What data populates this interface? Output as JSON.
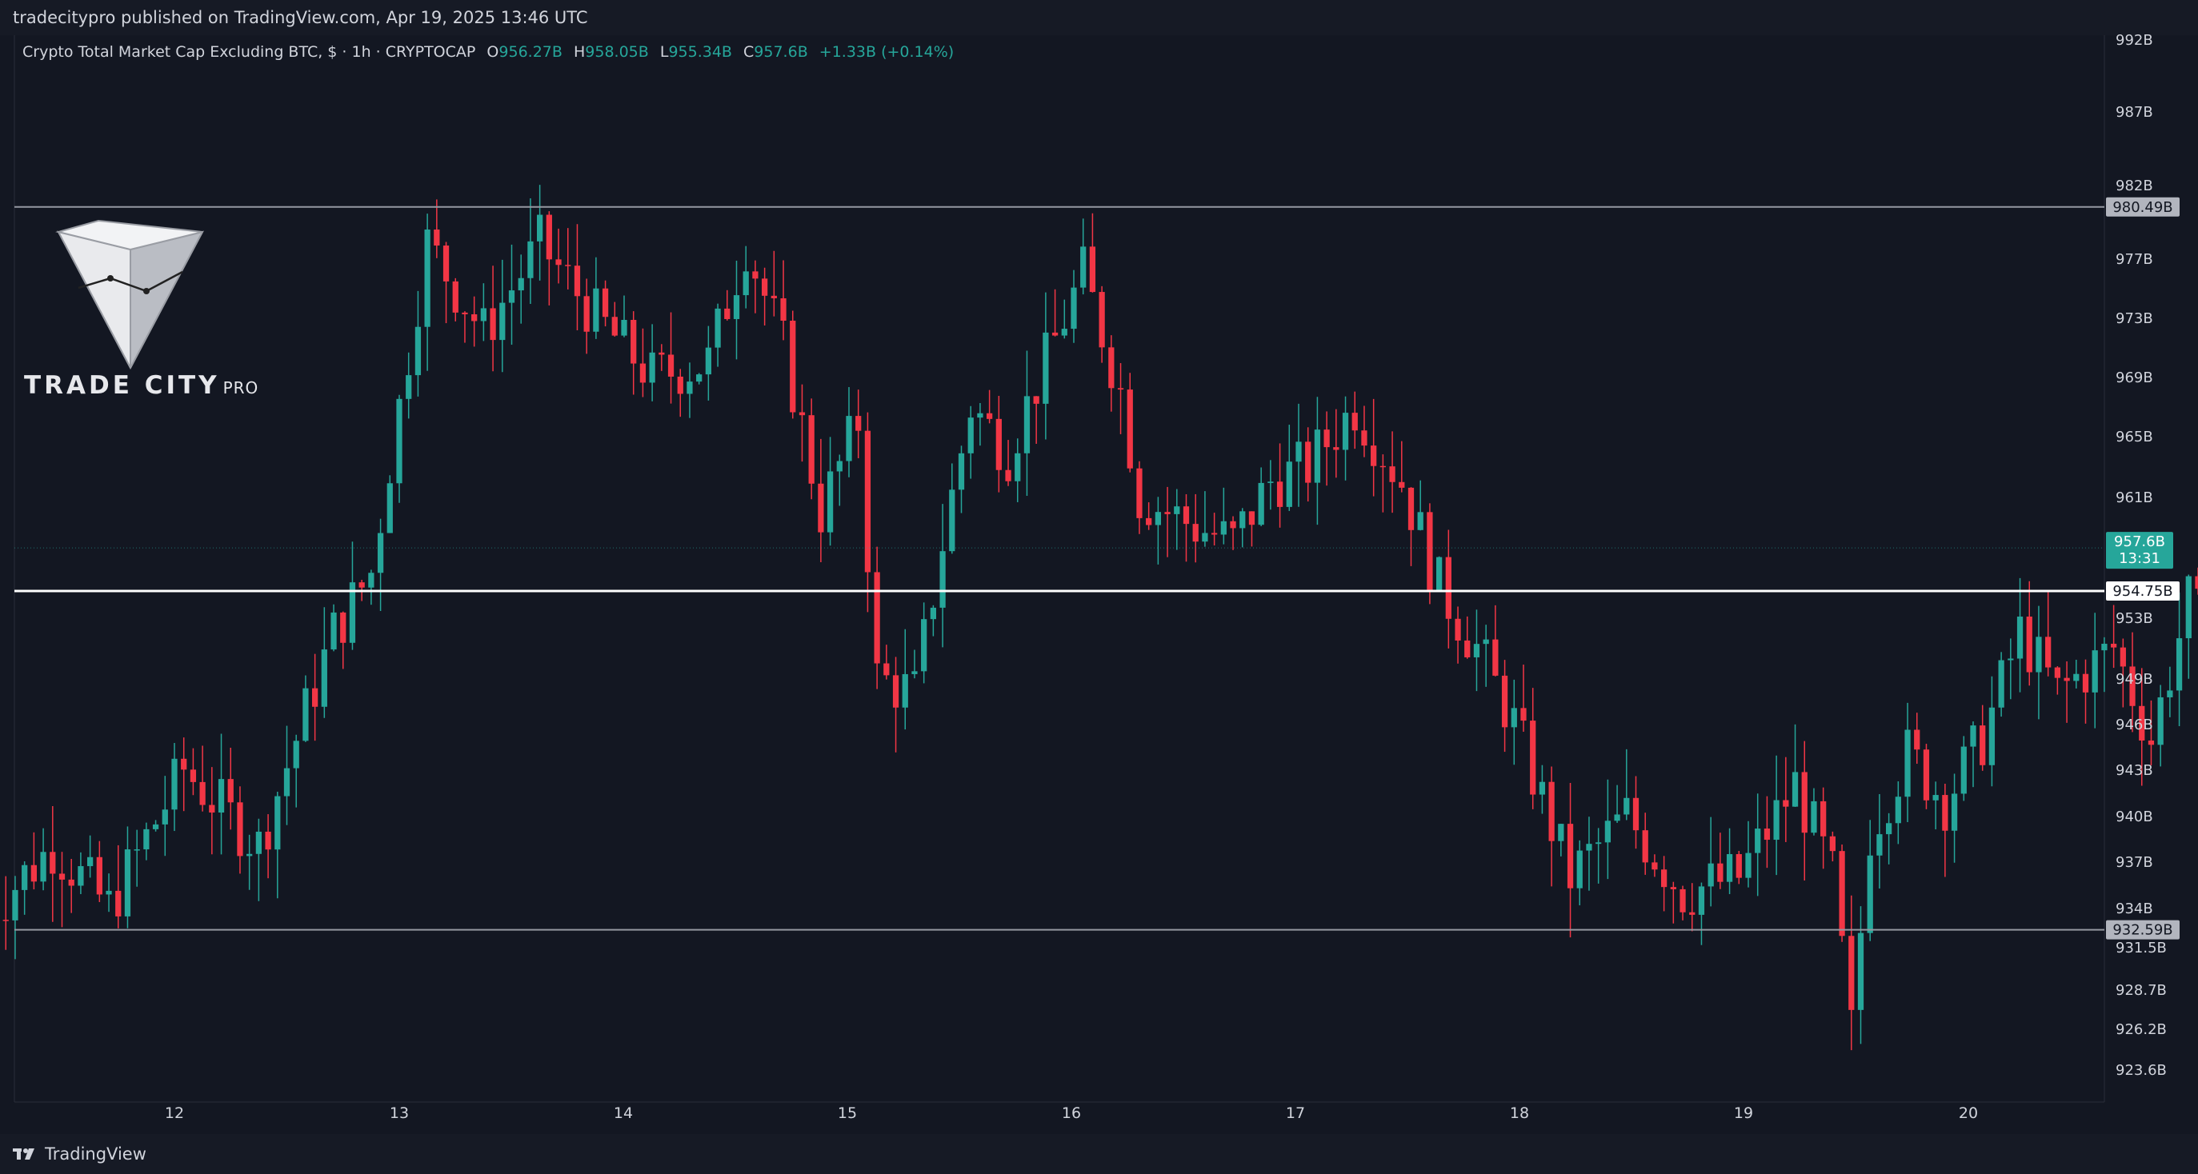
{
  "header": {
    "published_text": "tradecitypro published on TradingView.com, Apr 19, 2025 13:46 UTC"
  },
  "legend": {
    "symbol": "Crypto Total Market Cap Excluding BTC, $ · 1h · CRYPTOCAP",
    "o_label": "O",
    "o_value": "956.27B",
    "h_label": "H",
    "h_value": "958.05B",
    "l_label": "L",
    "l_value": "955.34B",
    "c_label": "C",
    "c_value": "957.6B",
    "change": "+1.33B (+0.14%)"
  },
  "watermark": {
    "brand": "TRADE CITY",
    "suffix": "PRO"
  },
  "footer": {
    "brand": "TradingView"
  },
  "colors": {
    "background": "#131722",
    "up": "#26a69a",
    "down": "#f23645",
    "text": "#d1d4dc",
    "gray_line": "#9598a1",
    "white_line": "#ffffff"
  },
  "chart_data": {
    "type": "candlestick",
    "y_axis": {
      "ticks": [
        {
          "value": 992,
          "label": "992B"
        },
        {
          "value": 987,
          "label": "987B"
        },
        {
          "value": 982,
          "label": "982B"
        },
        {
          "value": 977,
          "label": "977B"
        },
        {
          "value": 973,
          "label": "973B"
        },
        {
          "value": 969,
          "label": "969B"
        },
        {
          "value": 965,
          "label": "965B"
        },
        {
          "value": 961,
          "label": "961B"
        },
        {
          "value": 953,
          "label": "953B"
        },
        {
          "value": 949,
          "label": "949B"
        },
        {
          "value": 946,
          "label": "946B"
        },
        {
          "value": 943,
          "label": "943B"
        },
        {
          "value": 940,
          "label": "940B"
        },
        {
          "value": 937,
          "label": "937B"
        },
        {
          "value": 934,
          "label": "934B"
        },
        {
          "value": 931.5,
          "label": "931.5B"
        },
        {
          "value": 928.7,
          "label": "928.7B"
        },
        {
          "value": 926.2,
          "label": "926.2B"
        },
        {
          "value": 923.6,
          "label": "923.6B"
        }
      ]
    },
    "x_axis": {
      "ticks": [
        "12",
        "13",
        "14",
        "15",
        "16",
        "17",
        "18",
        "19",
        "20"
      ]
    },
    "levels": [
      {
        "value": 980.49,
        "label": "980.49B",
        "style": "gray"
      },
      {
        "value": 954.75,
        "label": "954.75B",
        "style": "white"
      },
      {
        "value": 932.59,
        "label": "932.59B",
        "style": "gray"
      }
    ],
    "last_price": {
      "value": 957.6,
      "label": "957.6B",
      "countdown": "13:31"
    },
    "key_points": [
      [
        0,
        933
      ],
      [
        8,
        938
      ],
      [
        14,
        934
      ],
      [
        22,
        943
      ],
      [
        30,
        938
      ],
      [
        38,
        952
      ],
      [
        42,
        956
      ],
      [
        48,
        978
      ],
      [
        54,
        972
      ],
      [
        60,
        978
      ],
      [
        66,
        973
      ],
      [
        72,
        969
      ],
      [
        78,
        970
      ],
      [
        82,
        978
      ],
      [
        86,
        971
      ],
      [
        90,
        960
      ],
      [
        94,
        966
      ],
      [
        96,
        949
      ],
      [
        100,
        948
      ],
      [
        103,
        958
      ],
      [
        106,
        967
      ],
      [
        110,
        964
      ],
      [
        114,
        970
      ],
      [
        118,
        976
      ],
      [
        122,
        968
      ],
      [
        124,
        961
      ],
      [
        130,
        959
      ],
      [
        134,
        958
      ],
      [
        138,
        962
      ],
      [
        142,
        963
      ],
      [
        147,
        967
      ],
      [
        152,
        962
      ],
      [
        156,
        955
      ],
      [
        160,
        951
      ],
      [
        164,
        946
      ],
      [
        170,
        936
      ],
      [
        176,
        940
      ],
      [
        182,
        935
      ],
      [
        188,
        936
      ],
      [
        194,
        942
      ],
      [
        198,
        936
      ],
      [
        200,
        926
      ],
      [
        202,
        939
      ],
      [
        206,
        944
      ],
      [
        210,
        941
      ],
      [
        214,
        945
      ],
      [
        218,
        952
      ],
      [
        222,
        948
      ],
      [
        228,
        951
      ],
      [
        232,
        945
      ],
      [
        236,
        954
      ],
      [
        240,
        950
      ],
      [
        244,
        948
      ],
      [
        248,
        946
      ],
      [
        252,
        948
      ],
      [
        258,
        951
      ],
      [
        264,
        949
      ],
      [
        270,
        953
      ],
      [
        276,
        952
      ],
      [
        280,
        950
      ],
      [
        284,
        956
      ],
      [
        288,
        958
      ],
      [
        292,
        959
      ],
      [
        295,
        957.6
      ]
    ]
  }
}
